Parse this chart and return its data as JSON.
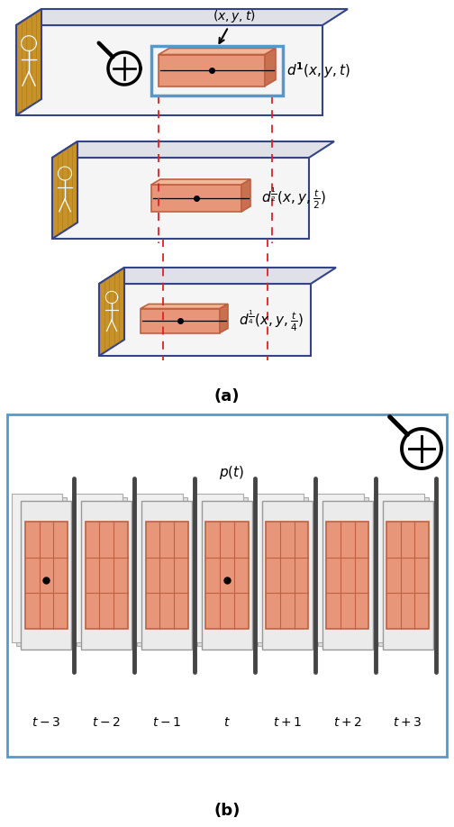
{
  "fig_width": 5.04,
  "fig_height": 9.18,
  "dpi": 100,
  "bg_color": "#ffffff",
  "wood_color": "#c8922a",
  "wood_dark": "#a07010",
  "salmon_fill": "#e8967a",
  "salmon_light": "#f0b898",
  "salmon_dark": "#c87050",
  "salmon_edge": "#c06040",
  "blue_box_color": "#5599cc",
  "blue_box_color2": "#3377bb",
  "red_dashed_color": "#dd2222",
  "box_edge": "#334488",
  "box_face": "#f5f5f5",
  "box_top": "#e0e0e8",
  "box_right": "#d0d0d8",
  "part_a_label": "(a)",
  "part_b_label": "(b)",
  "label1": "$d^{\\mathbf{1}}(x,y,t)$",
  "label2": "$d^{\\frac{1}{2}}(x,y,\\frac{t}{2})$",
  "label3": "$d^{\\frac{1}{4}}(x,y,\\frac{t}{4})$",
  "coord_label": "$(x,y,t)$",
  "pt_label": "$p(t)$",
  "time_labels": [
    "$t-3$",
    "$t-2$",
    "$t-1$",
    "$t$",
    "$t+1$",
    "$t+2$",
    "$t+3$"
  ]
}
